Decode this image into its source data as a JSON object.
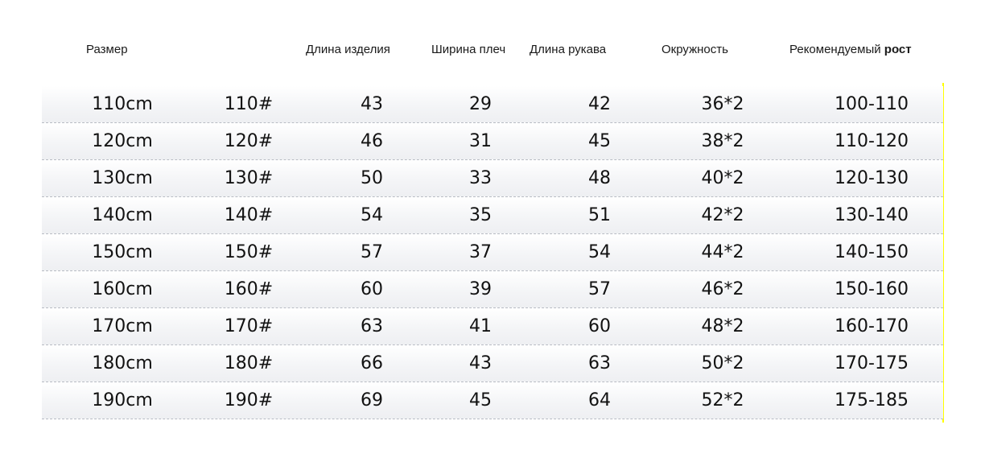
{
  "header": {
    "size": "Размер",
    "length": "Длина изделия",
    "shoulder": "Ширина плеч",
    "sleeve": "Длина рукава",
    "girth": "Окружность",
    "height_label": "Рекомендуемый",
    "height_label_bold": "рост"
  },
  "rows": [
    {
      "cm": "110cm",
      "code": "110#",
      "length": "43",
      "shoulder": "29",
      "sleeve": "42",
      "girth": "36*2",
      "height": "100-110"
    },
    {
      "cm": "120cm",
      "code": "120#",
      "length": "46",
      "shoulder": "31",
      "sleeve": "45",
      "girth": "38*2",
      "height": "110-120"
    },
    {
      "cm": "130cm",
      "code": "130#",
      "length": "50",
      "shoulder": "33",
      "sleeve": "48",
      "girth": "40*2",
      "height": "120-130"
    },
    {
      "cm": "140cm",
      "code": "140#",
      "length": "54",
      "shoulder": "35",
      "sleeve": "51",
      "girth": "42*2",
      "height": "130-140"
    },
    {
      "cm": "150cm",
      "code": "150#",
      "length": "57",
      "shoulder": "37",
      "sleeve": "54",
      "girth": "44*2",
      "height": "140-150"
    },
    {
      "cm": "160cm",
      "code": "160#",
      "length": "60",
      "shoulder": "39",
      "sleeve": "57",
      "girth": "46*2",
      "height": "150-160"
    },
    {
      "cm": "170cm",
      "code": "170#",
      "length": "63",
      "shoulder": "41",
      "sleeve": "60",
      "girth": "48*2",
      "height": "160-170"
    },
    {
      "cm": "180cm",
      "code": "180#",
      "length": "66",
      "shoulder": "43",
      "sleeve": "63",
      "girth": "50*2",
      "height": "170-175"
    },
    {
      "cm": "190cm",
      "code": "190#",
      "length": "69",
      "shoulder": "45",
      "sleeve": "64",
      "girth": "52*2",
      "height": "175-185"
    }
  ],
  "colors": {
    "accent_line": "#ffff00",
    "row_divider": "#b8bcc4",
    "text": "#121212"
  }
}
